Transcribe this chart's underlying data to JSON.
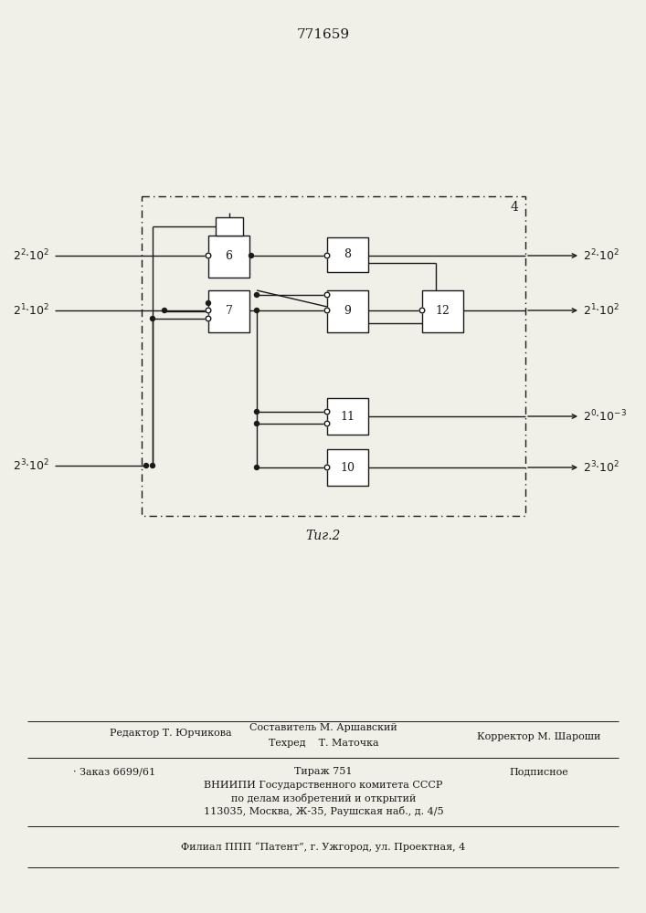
{
  "title_number": "771659",
  "fig_label": "Τиг.2",
  "outer_box_label": "4",
  "bg_color": "#f0efe8",
  "line_color": "#1a1a1a",
  "box_color": "#ffffff",
  "input_labels_left": [
    "2²·10²",
    "2¹·10²",
    "2³·10²"
  ],
  "output_labels_right": [
    "2²·10²",
    "2¹·10²",
    "2⁰·10⁻³",
    "2³·10²"
  ],
  "block_labels": [
    "6",
    "7",
    "8",
    "9",
    "10",
    "11",
    "12"
  ],
  "footer_editor": "Редактор Т. Юрчикова",
  "footer_sostavitel": "Составитель М. Аршавский",
  "footer_tehred": "Техред    Т. Маточка",
  "footer_korrektor": "Корректор М. Шароши",
  "footer_zakaz": "Заказ 6699/61",
  "footer_tirazh": "Тираж 751",
  "footer_podpisnoe": "Подписное",
  "footer_vniiipi1": "ВНИИПИ Государственного комитета СССР",
  "footer_vniiipi2": "по делам изобретений и открытий",
  "footer_vniiipi3": "113035, Москва, Ж-35, Раушская наб., д. 4/5",
  "footer_filial": "Филиал ППП “Патент”, г. Ужгород, ул. Проектная, 4"
}
